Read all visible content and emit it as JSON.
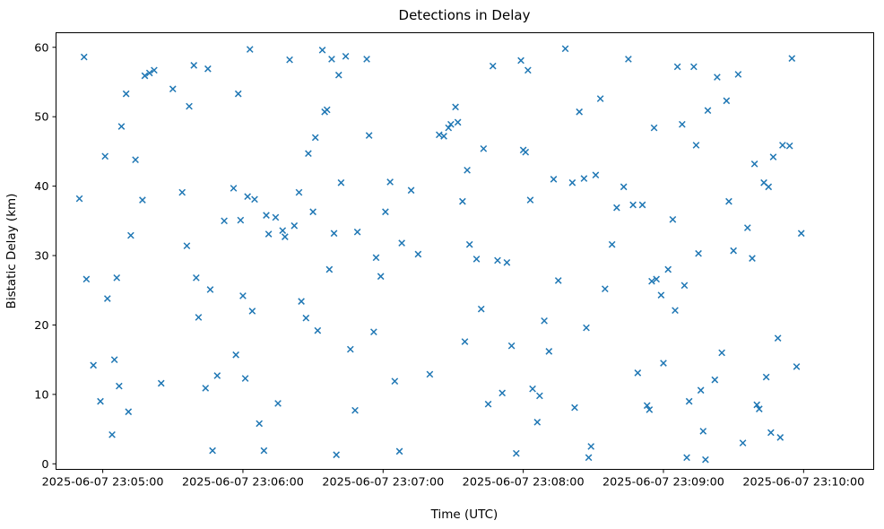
{
  "chart_data": {
    "type": "scatter",
    "title": "Detections in Delay",
    "xlabel": "Time (UTC)",
    "ylabel": "Bistatic Delay (km)",
    "date": "2025-06-07",
    "grid": false,
    "legend": "none",
    "marker": {
      "shape": "x",
      "color": "#1f77b4"
    },
    "x_axis": {
      "start": "23:04:40",
      "end": "23:10:30",
      "ticks": [
        {
          "time": "23:05:00",
          "label": "2025-06-07 23:05:00"
        },
        {
          "time": "23:06:00",
          "label": "2025-06-07 23:06:00"
        },
        {
          "time": "23:07:00",
          "label": "2025-06-07 23:07:00"
        },
        {
          "time": "23:08:00",
          "label": "2025-06-07 23:08:00"
        },
        {
          "time": "23:09:00",
          "label": "2025-06-07 23:09:00"
        },
        {
          "time": "23:10:00",
          "label": "2025-06-07 23:10:00"
        }
      ]
    },
    "y_axis": {
      "lim": [
        -0.8,
        62.1
      ],
      "ticks": [
        0,
        10,
        20,
        30,
        40,
        50,
        60
      ]
    },
    "points_format": [
      "time_utc",
      "bistatic_delay_km"
    ],
    "points": [
      [
        "23:04:50",
        38.2
      ],
      [
        "23:04:52",
        58.6
      ],
      [
        "23:04:53",
        26.6
      ],
      [
        "23:04:56",
        14.2
      ],
      [
        "23:04:59",
        9.0
      ],
      [
        "23:05:01",
        44.3
      ],
      [
        "23:05:02",
        23.8
      ],
      [
        "23:05:04",
        4.2
      ],
      [
        "23:05:05",
        15.0
      ],
      [
        "23:05:06",
        26.8
      ],
      [
        "23:05:07",
        11.2
      ],
      [
        "23:05:08",
        48.6
      ],
      [
        "23:05:10",
        53.3
      ],
      [
        "23:05:11",
        7.5
      ],
      [
        "23:05:12",
        32.9
      ],
      [
        "23:05:14",
        43.8
      ],
      [
        "23:05:17",
        38.0
      ],
      [
        "23:05:18",
        55.9
      ],
      [
        "23:05:20",
        56.3
      ],
      [
        "23:05:22",
        56.7
      ],
      [
        "23:05:25",
        11.6
      ],
      [
        "23:05:30",
        54.0
      ],
      [
        "23:05:34",
        39.1
      ],
      [
        "23:05:36",
        31.4
      ],
      [
        "23:05:37",
        51.5
      ],
      [
        "23:05:39",
        57.4
      ],
      [
        "23:05:40",
        26.8
      ],
      [
        "23:05:41",
        21.1
      ],
      [
        "23:05:44",
        10.9
      ],
      [
        "23:05:45",
        56.9
      ],
      [
        "23:05:46",
        25.1
      ],
      [
        "23:05:47",
        1.9
      ],
      [
        "23:05:49",
        12.7
      ],
      [
        "23:05:52",
        35.0
      ],
      [
        "23:05:56",
        39.7
      ],
      [
        "23:05:57",
        15.7
      ],
      [
        "23:05:58",
        53.3
      ],
      [
        "23:05:59",
        35.1
      ],
      [
        "23:06:00",
        24.2
      ],
      [
        "23:06:01",
        12.3
      ],
      [
        "23:06:02",
        38.5
      ],
      [
        "23:06:03",
        59.7
      ],
      [
        "23:06:04",
        22.0
      ],
      [
        "23:06:05",
        38.1
      ],
      [
        "23:06:07",
        5.8
      ],
      [
        "23:06:09",
        1.9
      ],
      [
        "23:06:10",
        35.8
      ],
      [
        "23:06:11",
        33.1
      ],
      [
        "23:06:14",
        35.5
      ],
      [
        "23:06:15",
        8.7
      ],
      [
        "23:06:17",
        33.6
      ],
      [
        "23:06:18",
        32.7
      ],
      [
        "23:06:20",
        58.2
      ],
      [
        "23:06:22",
        34.3
      ],
      [
        "23:06:24",
        39.1
      ],
      [
        "23:06:25",
        23.4
      ],
      [
        "23:06:27",
        21.0
      ],
      [
        "23:06:28",
        44.7
      ],
      [
        "23:06:30",
        36.3
      ],
      [
        "23:06:31",
        47.0
      ],
      [
        "23:06:32",
        19.2
      ],
      [
        "23:06:34",
        59.6
      ],
      [
        "23:06:35",
        50.7
      ],
      [
        "23:06:36",
        51.0
      ],
      [
        "23:06:37",
        28.0
      ],
      [
        "23:06:38",
        58.3
      ],
      [
        "23:06:39",
        33.2
      ],
      [
        "23:06:40",
        1.3
      ],
      [
        "23:06:41",
        56.0
      ],
      [
        "23:06:42",
        40.5
      ],
      [
        "23:06:44",
        58.7
      ],
      [
        "23:06:46",
        16.5
      ],
      [
        "23:06:48",
        7.7
      ],
      [
        "23:06:49",
        33.4
      ],
      [
        "23:06:53",
        58.3
      ],
      [
        "23:06:54",
        47.3
      ],
      [
        "23:06:56",
        19.0
      ],
      [
        "23:06:57",
        29.7
      ],
      [
        "23:06:59",
        27.0
      ],
      [
        "23:07:01",
        36.3
      ],
      [
        "23:07:03",
        40.6
      ],
      [
        "23:07:05",
        11.9
      ],
      [
        "23:07:07",
        1.8
      ],
      [
        "23:07:08",
        31.8
      ],
      [
        "23:07:12",
        39.4
      ],
      [
        "23:07:15",
        30.2
      ],
      [
        "23:07:20",
        12.9
      ],
      [
        "23:07:24",
        47.4
      ],
      [
        "23:07:26",
        47.2
      ],
      [
        "23:07:28",
        48.4
      ],
      [
        "23:07:29",
        48.9
      ],
      [
        "23:07:31",
        51.4
      ],
      [
        "23:07:32",
        49.2
      ],
      [
        "23:07:34",
        37.8
      ],
      [
        "23:07:35",
        17.6
      ],
      [
        "23:07:36",
        42.3
      ],
      [
        "23:07:37",
        31.6
      ],
      [
        "23:07:40",
        29.5
      ],
      [
        "23:07:42",
        22.3
      ],
      [
        "23:07:43",
        45.4
      ],
      [
        "23:07:45",
        8.6
      ],
      [
        "23:07:47",
        57.3
      ],
      [
        "23:07:49",
        29.3
      ],
      [
        "23:07:51",
        10.2
      ],
      [
        "23:07:53",
        29.0
      ],
      [
        "23:07:55",
        17.0
      ],
      [
        "23:07:57",
        1.5
      ],
      [
        "23:07:59",
        58.1
      ],
      [
        "23:08:00",
        45.2
      ],
      [
        "23:08:01",
        44.9
      ],
      [
        "23:08:02",
        56.7
      ],
      [
        "23:08:03",
        38.0
      ],
      [
        "23:08:04",
        10.8
      ],
      [
        "23:08:06",
        6.0
      ],
      [
        "23:08:07",
        9.8
      ],
      [
        "23:08:09",
        20.6
      ],
      [
        "23:08:11",
        16.2
      ],
      [
        "23:08:13",
        41.0
      ],
      [
        "23:08:15",
        26.4
      ],
      [
        "23:08:18",
        59.8
      ],
      [
        "23:08:21",
        40.5
      ],
      [
        "23:08:22",
        8.1
      ],
      [
        "23:08:24",
        50.7
      ],
      [
        "23:08:26",
        41.1
      ],
      [
        "23:08:27",
        19.6
      ],
      [
        "23:08:28",
        0.9
      ],
      [
        "23:08:29",
        2.5
      ],
      [
        "23:08:31",
        41.6
      ],
      [
        "23:08:33",
        52.6
      ],
      [
        "23:08:35",
        25.2
      ],
      [
        "23:08:38",
        31.6
      ],
      [
        "23:08:40",
        36.9
      ],
      [
        "23:08:43",
        39.9
      ],
      [
        "23:08:45",
        58.3
      ],
      [
        "23:08:47",
        37.3
      ],
      [
        "23:08:49",
        13.1
      ],
      [
        "23:08:51",
        37.3
      ],
      [
        "23:08:53",
        8.4
      ],
      [
        "23:08:54",
        7.8
      ],
      [
        "23:08:55",
        26.3
      ],
      [
        "23:08:56",
        48.4
      ],
      [
        "23:08:57",
        26.6
      ],
      [
        "23:08:59",
        24.3
      ],
      [
        "23:09:00",
        14.5
      ],
      [
        "23:09:02",
        28.0
      ],
      [
        "23:09:04",
        35.2
      ],
      [
        "23:09:05",
        22.1
      ],
      [
        "23:09:06",
        57.2
      ],
      [
        "23:09:08",
        48.9
      ],
      [
        "23:09:09",
        25.7
      ],
      [
        "23:09:10",
        0.9
      ],
      [
        "23:09:11",
        9.0
      ],
      [
        "23:09:13",
        57.2
      ],
      [
        "23:09:14",
        45.9
      ],
      [
        "23:09:15",
        30.3
      ],
      [
        "23:09:16",
        10.6
      ],
      [
        "23:09:17",
        4.7
      ],
      [
        "23:09:18",
        0.6
      ],
      [
        "23:09:19",
        50.9
      ],
      [
        "23:09:22",
        12.1
      ],
      [
        "23:09:23",
        55.7
      ],
      [
        "23:09:25",
        16.0
      ],
      [
        "23:09:27",
        52.3
      ],
      [
        "23:09:28",
        37.8
      ],
      [
        "23:09:30",
        30.7
      ],
      [
        "23:09:32",
        56.1
      ],
      [
        "23:09:34",
        3.0
      ],
      [
        "23:09:36",
        34.0
      ],
      [
        "23:09:38",
        29.6
      ],
      [
        "23:09:39",
        43.2
      ],
      [
        "23:09:40",
        8.5
      ],
      [
        "23:09:41",
        7.9
      ],
      [
        "23:09:43",
        40.5
      ],
      [
        "23:09:44",
        12.5
      ],
      [
        "23:09:45",
        39.9
      ],
      [
        "23:09:46",
        4.5
      ],
      [
        "23:09:47",
        44.2
      ],
      [
        "23:09:49",
        18.1
      ],
      [
        "23:09:50",
        3.8
      ],
      [
        "23:09:51",
        45.9
      ],
      [
        "23:09:54",
        45.8
      ],
      [
        "23:09:55",
        58.4
      ],
      [
        "23:09:57",
        14.0
      ],
      [
        "23:09:59",
        33.2
      ]
    ]
  },
  "colors": {
    "background": "#ffffff",
    "axes": "#000000",
    "text": "#000000"
  }
}
